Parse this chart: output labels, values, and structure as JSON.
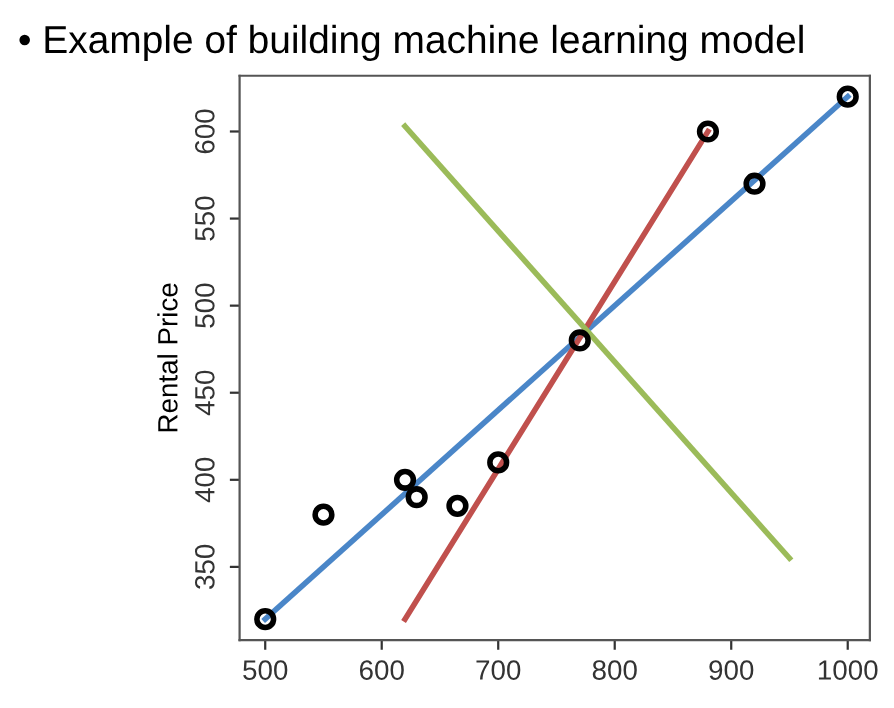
{
  "chart_data": {
    "type": "scatter",
    "title": "• Example of building machine learning model",
    "ylabel": "Rental Price",
    "xlim": [
      478,
      1019
    ],
    "ylim": [
      308,
      632
    ],
    "xticks": [
      500,
      600,
      700,
      800,
      900,
      1000
    ],
    "yticks": [
      350,
      400,
      450,
      500,
      550,
      600
    ],
    "grid": false,
    "legend": false,
    "series": [
      {
        "type": "scatter",
        "marker": "circle",
        "color": "#000000",
        "x": [
          500,
          550,
          620,
          630,
          665,
          700,
          770,
          880,
          920,
          1000
        ],
        "values": [
          320,
          380,
          400,
          390,
          385,
          410,
          480,
          600,
          570,
          620
        ]
      },
      {
        "type": "line",
        "color": "#4a86c8",
        "x": [
          500,
          1000
        ],
        "values": [
          320,
          620
        ]
      },
      {
        "type": "line",
        "color": "#c0504d",
        "x": [
          620,
          880
        ],
        "values": [
          320,
          600
        ]
      },
      {
        "type": "line",
        "color": "#9bbb59",
        "x": [
          620,
          950
        ],
        "values": [
          603,
          355
        ]
      }
    ]
  }
}
